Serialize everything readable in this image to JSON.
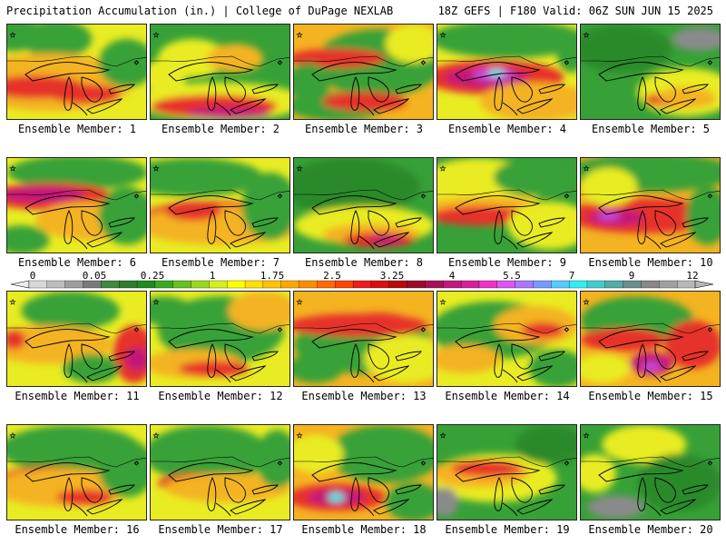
{
  "header": {
    "title_left": "Precipitation Accumulation (in.) | College of DuPage NEXLAB",
    "title_right": "18Z GEFS | F180 Valid: 06Z SUN JUN 15 2025"
  },
  "legend": {
    "labels": [
      "0",
      "0.05",
      "0.25",
      "1",
      "1.75",
      "2.5",
      "3.25",
      "4",
      "5.5",
      "7",
      "9",
      "12"
    ],
    "colors": [
      "#d8d8d8",
      "#bdbdbd",
      "#9e9e9e",
      "#7a7a7a",
      "#3e8a3e",
      "#2e7d2e",
      "#1e8c1e",
      "#3aaa1e",
      "#66c21e",
      "#9ad81e",
      "#d2ef1e",
      "#ffff00",
      "#ffe000",
      "#ffc400",
      "#ffa800",
      "#ff8c00",
      "#ff6a00",
      "#ff4500",
      "#ee1c1c",
      "#d80f0f",
      "#b80a0a",
      "#9c0a2a",
      "#a8105a",
      "#c0187c",
      "#d8209a",
      "#ee33c8",
      "#dd55ee",
      "#aa77ff",
      "#7799ff",
      "#55ccff",
      "#33eeee",
      "#44cccc",
      "#55aaaa",
      "#6a8f8f",
      "#888888",
      "#a0a0a0",
      "#b8b8b8"
    ]
  },
  "colors": {
    "green": "#37a137",
    "dark_green": "#2a8a2a",
    "yellow": "#e9ec22",
    "orange": "#f4b320",
    "red": "#e6322a",
    "magenta": "#c2187c",
    "violet": "#c84ad4",
    "cyan": "#3fe6e6",
    "gray": "#8a8a8a",
    "border": "#000000"
  },
  "members": [
    {
      "label": "Ensemble Member: 1",
      "base": "yellow",
      "blobs": [
        [
          "green",
          0.05,
          0.1,
          0.2,
          0.18
        ],
        [
          "green",
          0.35,
          0.15,
          0.25,
          0.2
        ],
        [
          "orange",
          0.3,
          0.6,
          0.6,
          0.3
        ],
        [
          "red",
          0.2,
          0.65,
          0.35,
          0.12
        ],
        [
          "red",
          0.55,
          0.72,
          0.25,
          0.1
        ],
        [
          "green",
          0.85,
          0.4,
          0.2,
          0.25
        ]
      ]
    },
    {
      "label": "Ensemble Member: 2",
      "base": "green",
      "blobs": [
        [
          "yellow",
          0.3,
          0.35,
          0.25,
          0.2
        ],
        [
          "orange",
          0.6,
          0.35,
          0.2,
          0.15
        ],
        [
          "yellow",
          0.5,
          0.8,
          0.6,
          0.2
        ],
        [
          "red",
          0.45,
          0.85,
          0.45,
          0.12
        ],
        [
          "magenta",
          0.55,
          0.92,
          0.3,
          0.06
        ],
        [
          "yellow",
          0.1,
          0.55,
          0.15,
          0.2
        ]
      ]
    },
    {
      "label": "Ensemble Member: 3",
      "base": "orange",
      "blobs": [
        [
          "green",
          0.6,
          0.4,
          0.45,
          0.35
        ],
        [
          "green",
          0.3,
          0.85,
          0.35,
          0.15
        ],
        [
          "red",
          0.3,
          0.35,
          0.35,
          0.1
        ],
        [
          "red",
          0.5,
          0.8,
          0.3,
          0.1
        ],
        [
          "yellow",
          0.85,
          0.2,
          0.2,
          0.2
        ],
        [
          "green",
          0.1,
          0.6,
          0.15,
          0.2
        ]
      ]
    },
    {
      "label": "Ensemble Member: 4",
      "base": "yellow",
      "blobs": [
        [
          "green",
          0.5,
          0.15,
          0.55,
          0.2
        ],
        [
          "red",
          0.4,
          0.55,
          0.5,
          0.18
        ],
        [
          "magenta",
          0.35,
          0.55,
          0.3,
          0.1
        ],
        [
          "violet",
          0.4,
          0.52,
          0.15,
          0.07
        ],
        [
          "cyan",
          0.42,
          0.5,
          0.06,
          0.04
        ],
        [
          "orange",
          0.7,
          0.8,
          0.4,
          0.2
        ],
        [
          "green",
          0.95,
          0.3,
          0.1,
          0.2
        ]
      ]
    },
    {
      "label": "Ensemble Member: 5",
      "base": "green",
      "blobs": [
        [
          "dark_green",
          0.3,
          0.25,
          0.35,
          0.25
        ],
        [
          "yellow",
          0.75,
          0.7,
          0.35,
          0.25
        ],
        [
          "red",
          0.7,
          0.78,
          0.25,
          0.08
        ],
        [
          "gray",
          0.85,
          0.15,
          0.2,
          0.12
        ],
        [
          "orange",
          0.75,
          0.75,
          0.2,
          0.1
        ]
      ]
    },
    {
      "label": "Ensemble Member: 6",
      "base": "yellow",
      "blobs": [
        [
          "green",
          0.5,
          0.15,
          0.5,
          0.18
        ],
        [
          "red",
          0.3,
          0.4,
          0.45,
          0.14
        ],
        [
          "magenta",
          0.25,
          0.38,
          0.3,
          0.08
        ],
        [
          "orange",
          0.6,
          0.65,
          0.4,
          0.2
        ],
        [
          "green",
          0.85,
          0.6,
          0.2,
          0.3
        ],
        [
          "green",
          0.1,
          0.85,
          0.2,
          0.15
        ]
      ]
    },
    {
      "label": "Ensemble Member: 7",
      "base": "yellow",
      "blobs": [
        [
          "green",
          0.3,
          0.2,
          0.5,
          0.2
        ],
        [
          "red",
          0.45,
          0.6,
          0.5,
          0.15
        ],
        [
          "orange",
          0.5,
          0.7,
          0.6,
          0.2
        ],
        [
          "green",
          0.85,
          0.5,
          0.2,
          0.35
        ],
        [
          "red",
          0.3,
          0.55,
          0.2,
          0.1
        ]
      ]
    },
    {
      "label": "Ensemble Member: 8",
      "base": "green",
      "blobs": [
        [
          "dark_green",
          0.4,
          0.3,
          0.5,
          0.3
        ],
        [
          "yellow",
          0.5,
          0.7,
          0.5,
          0.2
        ],
        [
          "orange",
          0.55,
          0.8,
          0.35,
          0.12
        ],
        [
          "red",
          0.6,
          0.85,
          0.25,
          0.08
        ],
        [
          "magenta",
          0.65,
          0.85,
          0.12,
          0.04
        ]
      ]
    },
    {
      "label": "Ensemble Member: 9",
      "base": "green",
      "blobs": [
        [
          "yellow",
          0.3,
          0.3,
          0.45,
          0.3
        ],
        [
          "orange",
          0.35,
          0.55,
          0.5,
          0.15
        ],
        [
          "red",
          0.3,
          0.6,
          0.35,
          0.1
        ],
        [
          "yellow",
          0.8,
          0.7,
          0.3,
          0.25
        ],
        [
          "green",
          0.7,
          0.2,
          0.3,
          0.2
        ]
      ]
    },
    {
      "label": "Ensemble Member: 10",
      "base": "orange",
      "blobs": [
        [
          "green",
          0.5,
          0.15,
          0.6,
          0.2
        ],
        [
          "red",
          0.45,
          0.6,
          0.55,
          0.18
        ],
        [
          "magenta",
          0.25,
          0.62,
          0.2,
          0.08
        ],
        [
          "violet",
          0.2,
          0.6,
          0.08,
          0.05
        ],
        [
          "yellow",
          0.2,
          0.3,
          0.2,
          0.2
        ],
        [
          "green",
          0.9,
          0.6,
          0.15,
          0.3
        ]
      ]
    },
    {
      "label": "Ensemble Member: 11",
      "base": "yellow",
      "blobs": [
        [
          "green",
          0.45,
          0.2,
          0.35,
          0.2
        ],
        [
          "orange",
          0.3,
          0.55,
          0.45,
          0.2
        ],
        [
          "red",
          0.9,
          0.65,
          0.15,
          0.3
        ],
        [
          "magenta",
          0.92,
          0.7,
          0.08,
          0.12
        ],
        [
          "red",
          0.05,
          0.5,
          0.08,
          0.1
        ],
        [
          "green",
          0.6,
          0.8,
          0.2,
          0.15
        ]
      ]
    },
    {
      "label": "Ensemble Member: 12",
      "base": "yellow",
      "blobs": [
        [
          "green",
          0.5,
          0.4,
          0.45,
          0.35
        ],
        [
          "orange",
          0.3,
          0.75,
          0.35,
          0.15
        ],
        [
          "red",
          0.45,
          0.8,
          0.25,
          0.08
        ],
        [
          "orange",
          0.8,
          0.2,
          0.25,
          0.2
        ],
        [
          "green",
          0.1,
          0.2,
          0.2,
          0.15
        ]
      ]
    },
    {
      "label": "Ensemble Member: 13",
      "base": "orange",
      "blobs": [
        [
          "green",
          0.5,
          0.55,
          0.5,
          0.3
        ],
        [
          "red",
          0.45,
          0.35,
          0.5,
          0.12
        ],
        [
          "yellow",
          0.8,
          0.7,
          0.3,
          0.25
        ],
        [
          "green",
          0.15,
          0.8,
          0.2,
          0.15
        ],
        [
          "red",
          0.6,
          0.3,
          0.2,
          0.08
        ]
      ]
    },
    {
      "label": "Ensemble Member: 14",
      "base": "yellow",
      "blobs": [
        [
          "green",
          0.4,
          0.4,
          0.45,
          0.3
        ],
        [
          "orange",
          0.7,
          0.35,
          0.3,
          0.2
        ],
        [
          "red",
          0.75,
          0.4,
          0.15,
          0.08
        ],
        [
          "green",
          0.85,
          0.8,
          0.2,
          0.2
        ],
        [
          "orange",
          0.2,
          0.7,
          0.25,
          0.15
        ]
      ]
    },
    {
      "label": "Ensemble Member: 15",
      "base": "orange",
      "blobs": [
        [
          "green",
          0.4,
          0.3,
          0.4,
          0.25
        ],
        [
          "red",
          0.3,
          0.5,
          0.3,
          0.12
        ],
        [
          "red",
          0.8,
          0.55,
          0.2,
          0.25
        ],
        [
          "magenta",
          0.5,
          0.75,
          0.15,
          0.12
        ],
        [
          "violet",
          0.5,
          0.78,
          0.07,
          0.05
        ],
        [
          "yellow",
          0.15,
          0.8,
          0.2,
          0.15
        ]
      ]
    },
    {
      "label": "Ensemble Member: 16",
      "base": "yellow",
      "blobs": [
        [
          "green",
          0.45,
          0.25,
          0.5,
          0.25
        ],
        [
          "red",
          0.3,
          0.55,
          0.35,
          0.12
        ],
        [
          "orange",
          0.4,
          0.65,
          0.5,
          0.2
        ],
        [
          "green",
          0.85,
          0.45,
          0.2,
          0.3
        ],
        [
          "red",
          0.55,
          0.75,
          0.2,
          0.08
        ]
      ]
    },
    {
      "label": "Ensemble Member: 17",
      "base": "yellow",
      "blobs": [
        [
          "green",
          0.4,
          0.3,
          0.45,
          0.3
        ],
        [
          "red",
          0.35,
          0.6,
          0.3,
          0.1
        ],
        [
          "orange",
          0.55,
          0.65,
          0.45,
          0.15
        ],
        [
          "green",
          0.9,
          0.35,
          0.15,
          0.3
        ]
      ]
    },
    {
      "label": "Ensemble Member: 18",
      "base": "orange",
      "blobs": [
        [
          "green",
          0.65,
          0.3,
          0.4,
          0.3
        ],
        [
          "red",
          0.3,
          0.75,
          0.35,
          0.14
        ],
        [
          "magenta",
          0.3,
          0.75,
          0.2,
          0.08
        ],
        [
          "cyan",
          0.3,
          0.75,
          0.06,
          0.05
        ],
        [
          "yellow",
          0.15,
          0.3,
          0.2,
          0.2
        ],
        [
          "green",
          0.85,
          0.8,
          0.2,
          0.2
        ]
      ]
    },
    {
      "label": "Ensemble Member: 19",
      "base": "green",
      "blobs": [
        [
          "yellow",
          0.4,
          0.55,
          0.45,
          0.25
        ],
        [
          "orange",
          0.3,
          0.5,
          0.35,
          0.15
        ],
        [
          "red",
          0.35,
          0.45,
          0.25,
          0.08
        ],
        [
          "gray",
          0.05,
          0.8,
          0.1,
          0.15
        ],
        [
          "dark_green",
          0.8,
          0.2,
          0.25,
          0.2
        ]
      ]
    },
    {
      "label": "Ensemble Member: 20",
      "base": "green",
      "blobs": [
        [
          "yellow",
          0.45,
          0.2,
          0.3,
          0.2
        ],
        [
          "dark_green",
          0.7,
          0.6,
          0.3,
          0.3
        ],
        [
          "gray",
          0.25,
          0.85,
          0.2,
          0.12
        ],
        [
          "yellow",
          0.1,
          0.5,
          0.15,
          0.2
        ]
      ]
    }
  ]
}
